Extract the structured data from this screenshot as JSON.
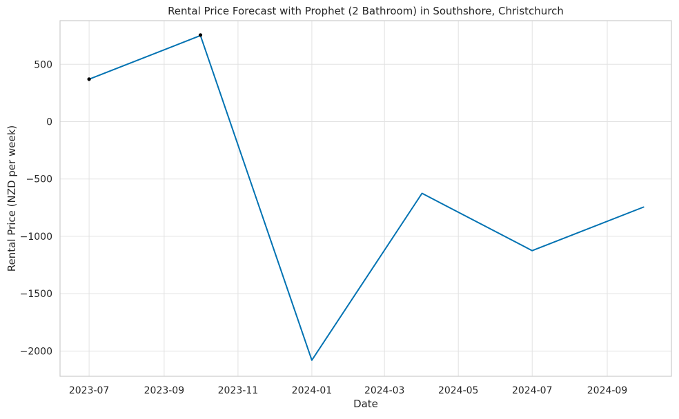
{
  "chart_data": {
    "type": "line",
    "title": "Rental Price Forecast with Prophet (2 Bathroom) in Southshore, Christchurch",
    "xlabel": "Date",
    "ylabel": "Rental Price (NZD per week)",
    "x_ticks": [
      "2023-07",
      "2023-09",
      "2023-11",
      "2024-01",
      "2024-03",
      "2024-05",
      "2024-07",
      "2024-09"
    ],
    "y_ticks": [
      500,
      0,
      -500,
      -1000,
      -1500,
      -2000
    ],
    "y_tick_labels": [
      "500",
      "0",
      "−500",
      "−1000",
      "−1500",
      "−2000"
    ],
    "xlim": [
      "2023-06-07",
      "2024-10-24"
    ],
    "ylim": [
      -2220,
      880
    ],
    "grid": true,
    "forecast": {
      "color": "#0072b2",
      "points": [
        {
          "x": "2023-07-01",
          "y": 370
        },
        {
          "x": "2023-10-01",
          "y": 750
        },
        {
          "x": "2024-01-01",
          "y": -2080
        },
        {
          "x": "2024-04-01",
          "y": -625
        },
        {
          "x": "2024-07-01",
          "y": -1125
        },
        {
          "x": "2024-10-01",
          "y": -745
        }
      ]
    },
    "observed": {
      "color": "#000000",
      "points": [
        {
          "x": "2023-07-01",
          "y": 370
        },
        {
          "x": "2023-10-01",
          "y": 755
        }
      ]
    }
  }
}
